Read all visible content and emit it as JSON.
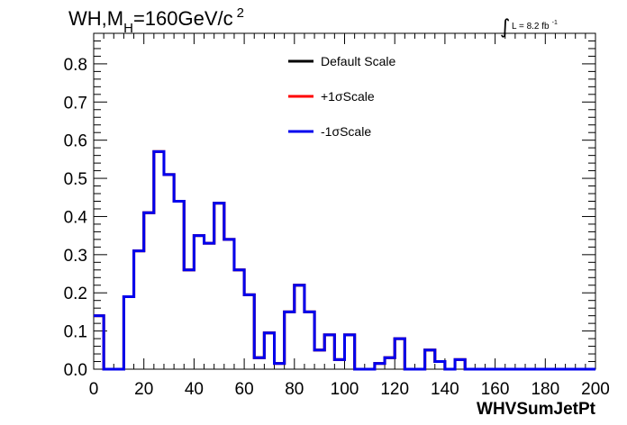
{
  "chart_data": {
    "type": "line",
    "title": {
      "main": "WH,M",
      "subscript": "H",
      "rest": "=160GeV/c",
      "superscript": "2"
    },
    "lumi": {
      "integral_sign": "∫",
      "text": "L = 8.2 fb",
      "superscript": "-1"
    },
    "xlabel": "WHVSumJetPt",
    "ylabel": "",
    "xlim": [
      0,
      200
    ],
    "ylim": [
      0,
      0.88
    ],
    "x_ticks": [
      {
        "value": 0,
        "label": "0"
      },
      {
        "value": 20,
        "label": "20"
      },
      {
        "value": 40,
        "label": "40"
      },
      {
        "value": 60,
        "label": "60"
      },
      {
        "value": 80,
        "label": "80"
      },
      {
        "value": 100,
        "label": "100"
      },
      {
        "value": 120,
        "label": "120"
      },
      {
        "value": 140,
        "label": "140"
      },
      {
        "value": 160,
        "label": "160"
      },
      {
        "value": 180,
        "label": "180"
      },
      {
        "value": 200,
        "label": "200"
      }
    ],
    "y_ticks": [
      {
        "value": 0.0,
        "label": "0.0"
      },
      {
        "value": 0.1,
        "label": "0.1"
      },
      {
        "value": 0.2,
        "label": "0.2"
      },
      {
        "value": 0.3,
        "label": "0.3"
      },
      {
        "value": 0.4,
        "label": "0.4"
      },
      {
        "value": 0.5,
        "label": "0.5"
      },
      {
        "value": 0.6,
        "label": "0.6"
      },
      {
        "value": 0.7,
        "label": "0.7"
      },
      {
        "value": 0.8,
        "label": "0.8"
      }
    ],
    "bin_edges": [
      0,
      4,
      8,
      12,
      16,
      20,
      24,
      28,
      32,
      36,
      40,
      44,
      48,
      52,
      56,
      60,
      64,
      68,
      72,
      76,
      80,
      84,
      88,
      92,
      96,
      100,
      104,
      108,
      112,
      116,
      120,
      124,
      128,
      132,
      136,
      140,
      144,
      148,
      152,
      156,
      160,
      164,
      168,
      172,
      176,
      180,
      184,
      188,
      192,
      196,
      200
    ],
    "series": [
      {
        "name": "Default Scale",
        "color": "#000000",
        "values": [
          0.14,
          0,
          0,
          0.19,
          0.31,
          0.41,
          0.57,
          0.51,
          0.44,
          0.26,
          0.35,
          0.33,
          0.435,
          0.34,
          0.26,
          0.195,
          0.03,
          0.095,
          0.015,
          0.15,
          0.22,
          0.15,
          0.05,
          0.09,
          0.025,
          0.09,
          0,
          0,
          0.015,
          0.03,
          0.08,
          0,
          0,
          0.05,
          0.02,
          0,
          0.025,
          0,
          0,
          0,
          0,
          0,
          0,
          0,
          0,
          0,
          0,
          0,
          0,
          0
        ]
      },
      {
        "name": "+1σScale",
        "color": "#ff0000",
        "values": [
          0.14,
          0,
          0,
          0.19,
          0.31,
          0.41,
          0.57,
          0.51,
          0.44,
          0.26,
          0.35,
          0.33,
          0.435,
          0.34,
          0.26,
          0.195,
          0.03,
          0.095,
          0.015,
          0.15,
          0.22,
          0.15,
          0.05,
          0.09,
          0.025,
          0.09,
          0,
          0,
          0.015,
          0.03,
          0.08,
          0,
          0,
          0.05,
          0.02,
          0,
          0.025,
          0,
          0,
          0,
          0,
          0,
          0,
          0,
          0,
          0,
          0,
          0,
          0,
          0
        ]
      },
      {
        "name": "-1σScale",
        "color": "#0000ee",
        "values": [
          0.14,
          0,
          0,
          0.19,
          0.31,
          0.41,
          0.57,
          0.51,
          0.44,
          0.26,
          0.35,
          0.33,
          0.435,
          0.34,
          0.26,
          0.195,
          0.03,
          0.095,
          0.015,
          0.15,
          0.22,
          0.15,
          0.05,
          0.09,
          0.025,
          0.09,
          0,
          0,
          0.015,
          0.03,
          0.08,
          0,
          0,
          0.05,
          0.02,
          0,
          0.025,
          0,
          0,
          0,
          0,
          0,
          0,
          0,
          0,
          0,
          0,
          0,
          0,
          0
        ]
      }
    ],
    "legend_position": "top-center",
    "grid": false
  }
}
